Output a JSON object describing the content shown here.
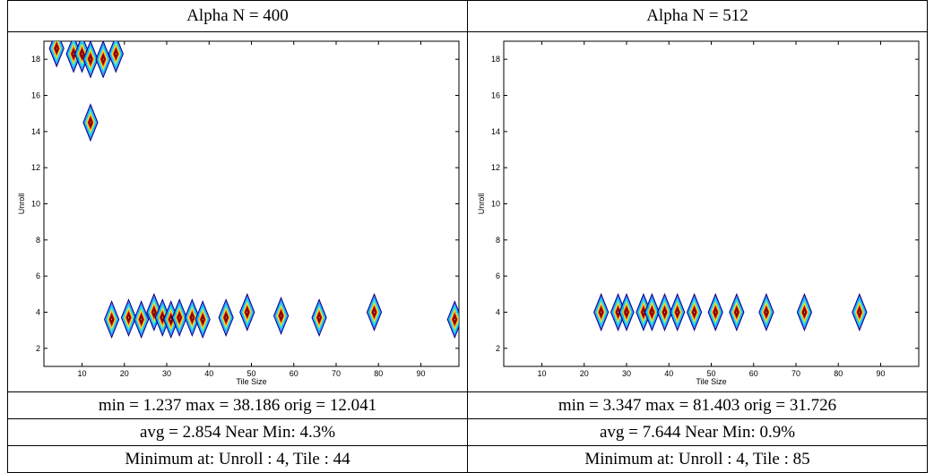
{
  "panels": [
    {
      "title": "Alpha N = 400",
      "stats_line1": "min = 1.237 max = 38.186 orig = 12.041",
      "stats_line2": "avg = 2.854 Near Min: 4.3%",
      "stats_line3": "Minimum at: Unroll : 4, Tile : 44"
    },
    {
      "title": "Alpha N = 512",
      "stats_line1": "min = 3.347 max = 81.403 orig = 31.726",
      "stats_line2": "avg = 7.644 Near Min: 0.9%",
      "stats_line3": "Minimum at: Unroll : 4, Tile : 85"
    }
  ],
  "chart_data": [
    {
      "type": "contour",
      "title": "Alpha N = 400",
      "xlabel": "Tile Size",
      "ylabel": "Unroll",
      "xlim": [
        1,
        99
      ],
      "ylim": [
        1,
        19
      ],
      "xticks": [
        10,
        20,
        30,
        40,
        50,
        60,
        70,
        80,
        90
      ],
      "yticks": [
        2,
        4,
        6,
        8,
        10,
        12,
        14,
        16,
        18
      ],
      "colors": [
        "#00008b",
        "#1e90ff",
        "#00e5e5",
        "#ffd200",
        "#ff4000",
        "#8b0000"
      ],
      "blobs": [
        {
          "x": 4,
          "y": 18.6
        },
        {
          "x": 8,
          "y": 18.3
        },
        {
          "x": 10,
          "y": 18.3
        },
        {
          "x": 12,
          "y": 18.0
        },
        {
          "x": 15,
          "y": 18.0
        },
        {
          "x": 18,
          "y": 18.3
        },
        {
          "x": 12,
          "y": 14.5
        },
        {
          "x": 17,
          "y": 3.6
        },
        {
          "x": 21,
          "y": 3.7
        },
        {
          "x": 24,
          "y": 3.6
        },
        {
          "x": 27,
          "y": 4.0
        },
        {
          "x": 29,
          "y": 3.7
        },
        {
          "x": 31,
          "y": 3.6
        },
        {
          "x": 33,
          "y": 3.7
        },
        {
          "x": 36,
          "y": 3.7
        },
        {
          "x": 38.5,
          "y": 3.6
        },
        {
          "x": 44,
          "y": 3.7
        },
        {
          "x": 49,
          "y": 4.0
        },
        {
          "x": 57,
          "y": 3.8
        },
        {
          "x": 66,
          "y": 3.7
        },
        {
          "x": 79,
          "y": 4.0
        },
        {
          "x": 98,
          "y": 3.6
        }
      ]
    },
    {
      "type": "contour",
      "title": "Alpha N = 512",
      "xlabel": "Tile Size",
      "ylabel": "Unroll",
      "xlim": [
        1,
        99
      ],
      "ylim": [
        1,
        19
      ],
      "xticks": [
        10,
        20,
        30,
        40,
        50,
        60,
        70,
        80,
        90
      ],
      "yticks": [
        2,
        4,
        6,
        8,
        10,
        12,
        14,
        16,
        18
      ],
      "colors": [
        "#00008b",
        "#1e90ff",
        "#00e5e5",
        "#ffd200",
        "#ff4000",
        "#8b0000"
      ],
      "blobs": [
        {
          "x": 24,
          "y": 4.0
        },
        {
          "x": 28,
          "y": 4.0
        },
        {
          "x": 30,
          "y": 4.0
        },
        {
          "x": 34,
          "y": 4.0
        },
        {
          "x": 36,
          "y": 4.0
        },
        {
          "x": 39,
          "y": 4.0
        },
        {
          "x": 42,
          "y": 4.0
        },
        {
          "x": 46,
          "y": 4.0
        },
        {
          "x": 51,
          "y": 4.0
        },
        {
          "x": 56,
          "y": 4.0
        },
        {
          "x": 63,
          "y": 4.0
        },
        {
          "x": 72,
          "y": 4.0
        },
        {
          "x": 85,
          "y": 4.0
        }
      ]
    }
  ]
}
